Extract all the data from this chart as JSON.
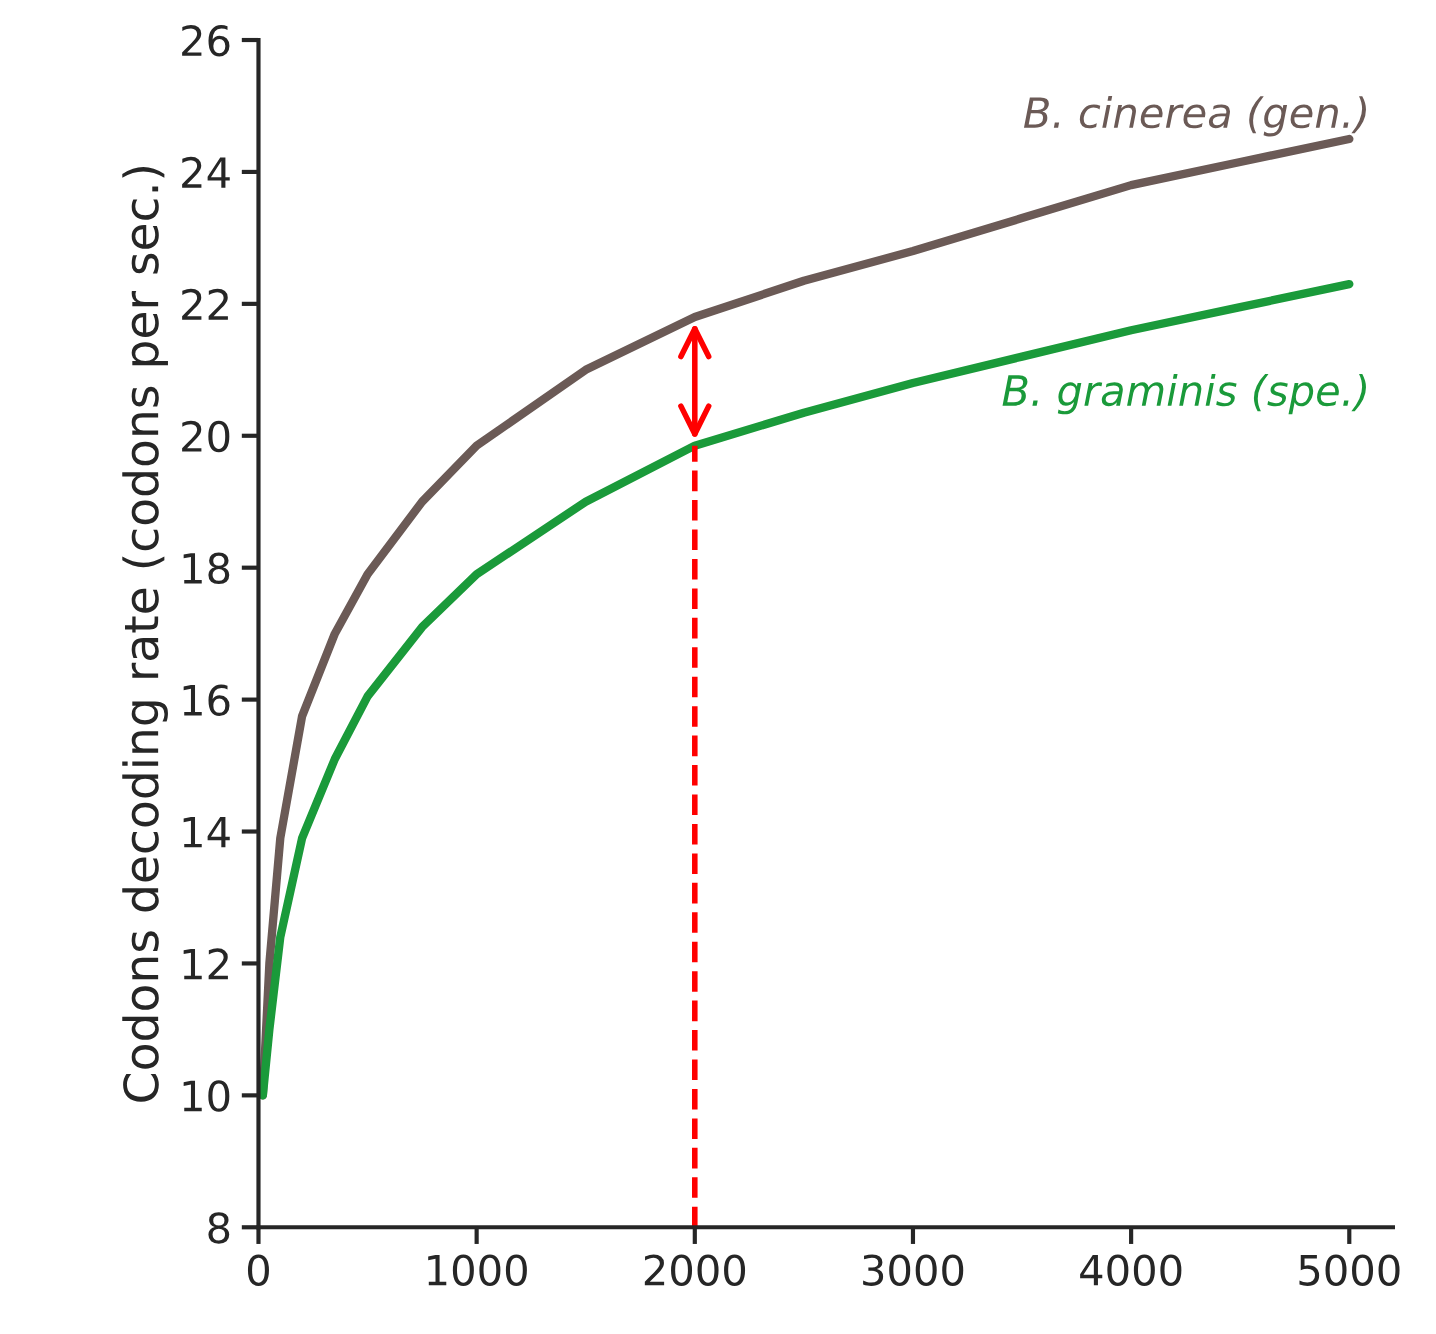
{
  "chart_data": {
    "type": "line",
    "ylabel": "Codons decoding rate (codons per sec.)",
    "x": [
      20,
      50,
      100,
      200,
      350,
      500,
      750,
      1000,
      1500,
      2000,
      2500,
      3000,
      3500,
      4000,
      4500,
      5000
    ],
    "series": [
      {
        "name": "B. cinerea (gen.)",
        "color": "#6b5a56",
        "values": [
          10,
          12.0,
          13.9,
          15.75,
          17.0,
          17.9,
          19.0,
          19.85,
          21.0,
          21.8,
          22.35,
          22.8,
          23.3,
          23.8,
          24.15,
          24.5
        ]
      },
      {
        "name": "B. graminis (spe.)",
        "color": "#1a9a3a",
        "values": [
          10,
          11.0,
          12.4,
          13.9,
          15.1,
          16.05,
          17.1,
          17.9,
          19.0,
          19.85,
          20.35,
          20.8,
          21.2,
          21.6,
          21.95,
          22.3
        ]
      }
    ],
    "xlim": [
      0,
      5200
    ],
    "ylim": [
      8,
      26
    ],
    "xticks": [
      0,
      1000,
      2000,
      3000,
      4000,
      5000
    ],
    "yticks": [
      8,
      10,
      12,
      14,
      16,
      18,
      20,
      22,
      24,
      26
    ],
    "ref_lines": [
      {
        "axis": "x",
        "value": 2000,
        "color": "#ff0000",
        "line_style": "dashed"
      }
    ],
    "grid": false,
    "legend": false
  }
}
